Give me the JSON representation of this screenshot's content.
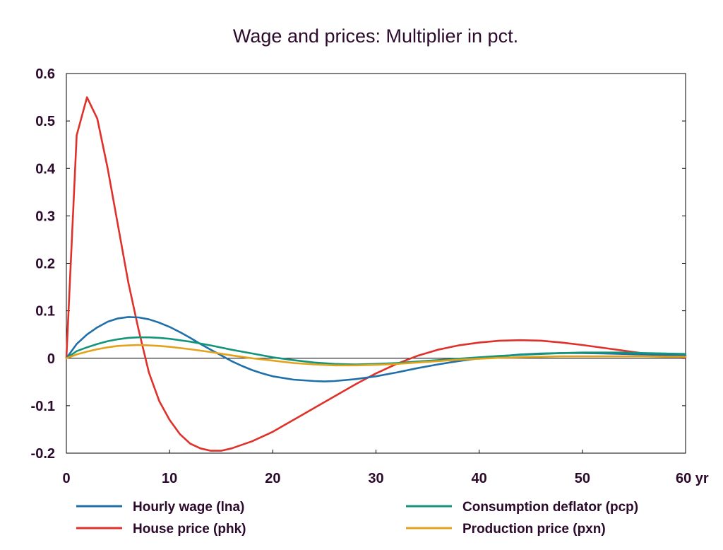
{
  "chart_data": {
    "type": "line",
    "title": "Wage and prices: Multiplier in pct.",
    "xlabel": "",
    "ylabel": "",
    "x_unit_label": "yr",
    "xlim": [
      0,
      60
    ],
    "ylim": [
      -0.2,
      0.6
    ],
    "x_ticks": [
      0,
      10,
      20,
      30,
      40,
      50,
      60
    ],
    "x_tick_labels": [
      "0",
      "10",
      "20",
      "30",
      "40",
      "50",
      "60 yr"
    ],
    "y_ticks": [
      -0.2,
      -0.1,
      0,
      0.1,
      0.2,
      0.3,
      0.4,
      0.5,
      0.6
    ],
    "y_tick_labels": [
      "-0.2",
      "-0.1",
      "0",
      "0.1",
      "0.2",
      "0.3",
      "0.4",
      "0.5",
      "0.6"
    ],
    "grid": false,
    "legend_position": "bottom",
    "series": [
      {
        "name": "Hourly wage (lna)",
        "color": "#1f6fa8",
        "x": [
          0,
          1,
          2,
          3,
          4,
          5,
          6,
          7,
          8,
          9,
          10,
          11,
          12,
          13,
          14,
          15,
          16,
          17,
          18,
          19,
          20,
          22,
          24,
          25,
          26,
          28,
          30,
          32,
          34,
          36,
          38,
          40,
          42,
          44,
          46,
          48,
          50,
          52,
          54,
          56,
          58,
          60
        ],
        "y": [
          0,
          0.03,
          0.05,
          0.065,
          0.077,
          0.084,
          0.087,
          0.086,
          0.082,
          0.075,
          0.066,
          0.055,
          0.043,
          0.03,
          0.018,
          0.006,
          -0.006,
          -0.016,
          -0.025,
          -0.032,
          -0.038,
          -0.045,
          -0.048,
          -0.049,
          -0.048,
          -0.044,
          -0.038,
          -0.03,
          -0.021,
          -0.013,
          -0.006,
          0,
          0.004,
          0.008,
          0.01,
          0.011,
          0.011,
          0.01,
          0.009,
          0.008,
          0.007,
          0.006
        ]
      },
      {
        "name": "Consumption deflator (pcp)",
        "color": "#14957a",
        "x": [
          0,
          1,
          2,
          3,
          4,
          5,
          6,
          7,
          8,
          9,
          10,
          12,
          14,
          16,
          18,
          20,
          22,
          24,
          26,
          28,
          30,
          32,
          34,
          36,
          38,
          40,
          42,
          44,
          46,
          48,
          50,
          52,
          54,
          56,
          58,
          60
        ],
        "y": [
          0,
          0.015,
          0.023,
          0.03,
          0.036,
          0.04,
          0.043,
          0.044,
          0.044,
          0.043,
          0.041,
          0.035,
          0.027,
          0.018,
          0.01,
          0.002,
          -0.004,
          -0.009,
          -0.012,
          -0.013,
          -0.012,
          -0.01,
          -0.007,
          -0.004,
          -0.001,
          0.002,
          0.005,
          0.007,
          0.009,
          0.011,
          0.012,
          0.012,
          0.012,
          0.011,
          0.01,
          0.009
        ]
      },
      {
        "name": "House price (phk)",
        "color": "#e0302a",
        "x": [
          0,
          1,
          2,
          3,
          4,
          5,
          6,
          7,
          8,
          9,
          10,
          11,
          12,
          13,
          14,
          15,
          16,
          18,
          20,
          22,
          24,
          26,
          28,
          30,
          32,
          34,
          36,
          38,
          40,
          42,
          44,
          46,
          48,
          50,
          52,
          54,
          56,
          58,
          60
        ],
        "y": [
          0,
          0.47,
          0.55,
          0.505,
          0.4,
          0.28,
          0.16,
          0.06,
          -0.03,
          -0.09,
          -0.13,
          -0.16,
          -0.18,
          -0.19,
          -0.195,
          -0.195,
          -0.19,
          -0.175,
          -0.155,
          -0.13,
          -0.105,
          -0.08,
          -0.055,
          -0.032,
          -0.012,
          0.005,
          0.018,
          0.027,
          0.033,
          0.037,
          0.038,
          0.037,
          0.033,
          0.028,
          0.022,
          0.016,
          0.01,
          0.005,
          0.002
        ]
      },
      {
        "name": "Production price (pxn)",
        "color": "#e3a21a",
        "x": [
          0,
          1,
          2,
          3,
          4,
          5,
          6,
          7,
          8,
          9,
          10,
          12,
          14,
          16,
          18,
          20,
          22,
          24,
          26,
          28,
          30,
          32,
          34,
          36,
          38,
          40,
          42,
          44,
          46,
          48,
          50,
          52,
          54,
          56,
          58,
          60
        ],
        "y": [
          0,
          0.008,
          0.014,
          0.019,
          0.023,
          0.026,
          0.027,
          0.028,
          0.027,
          0.026,
          0.024,
          0.019,
          0.013,
          0.006,
          0,
          -0.005,
          -0.01,
          -0.013,
          -0.015,
          -0.015,
          -0.014,
          -0.012,
          -0.009,
          -0.006,
          -0.003,
          -0.001,
          0.001,
          0.002,
          0.003,
          0.004,
          0.004,
          0.004,
          0.004,
          0.004,
          0.003,
          0.003
        ]
      }
    ]
  }
}
